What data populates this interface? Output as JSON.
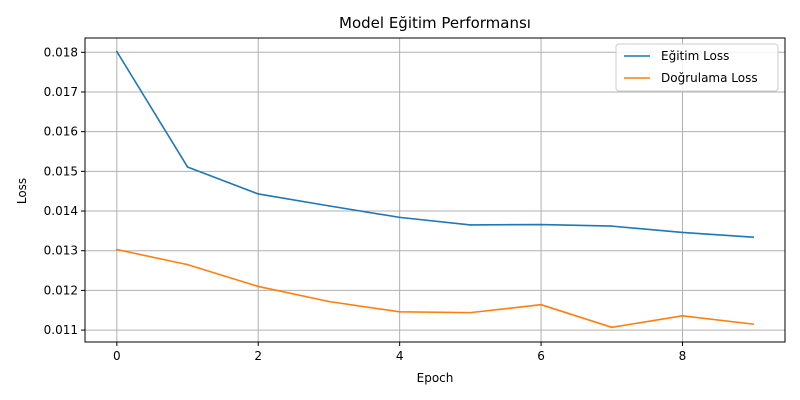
{
  "chart_data": {
    "type": "line",
    "title": "Model Eğitim Performansı",
    "xlabel": "Epoch",
    "ylabel": "Loss",
    "xlim": [
      -0.45,
      9.45
    ],
    "ylim": [
      0.0107,
      0.01836
    ],
    "xticks": [
      0,
      2,
      4,
      6,
      8
    ],
    "yticks": [
      0.011,
      0.012,
      0.013,
      0.014,
      0.015,
      0.016,
      0.017,
      0.018
    ],
    "ytick_labels": [
      "0.011",
      "0.012",
      "0.013",
      "0.014",
      "0.015",
      "0.016",
      "0.017",
      "0.018"
    ],
    "grid": true,
    "legend_position": "top-right",
    "x": [
      0,
      1,
      2,
      3,
      4,
      5,
      6,
      7,
      8,
      9
    ],
    "series": [
      {
        "name": "Eğitim Loss",
        "color": "#1f77b4",
        "values": [
          0.01802,
          0.01511,
          0.01443,
          0.01413,
          0.01384,
          0.01365,
          0.01366,
          0.01362,
          0.01346,
          0.01334
        ]
      },
      {
        "name": "Doğrulama Loss",
        "color": "#ff7f0e",
        "values": [
          0.01303,
          0.01265,
          0.0121,
          0.01172,
          0.01146,
          0.01144,
          0.01164,
          0.01107,
          0.01136,
          0.01115
        ]
      }
    ]
  }
}
